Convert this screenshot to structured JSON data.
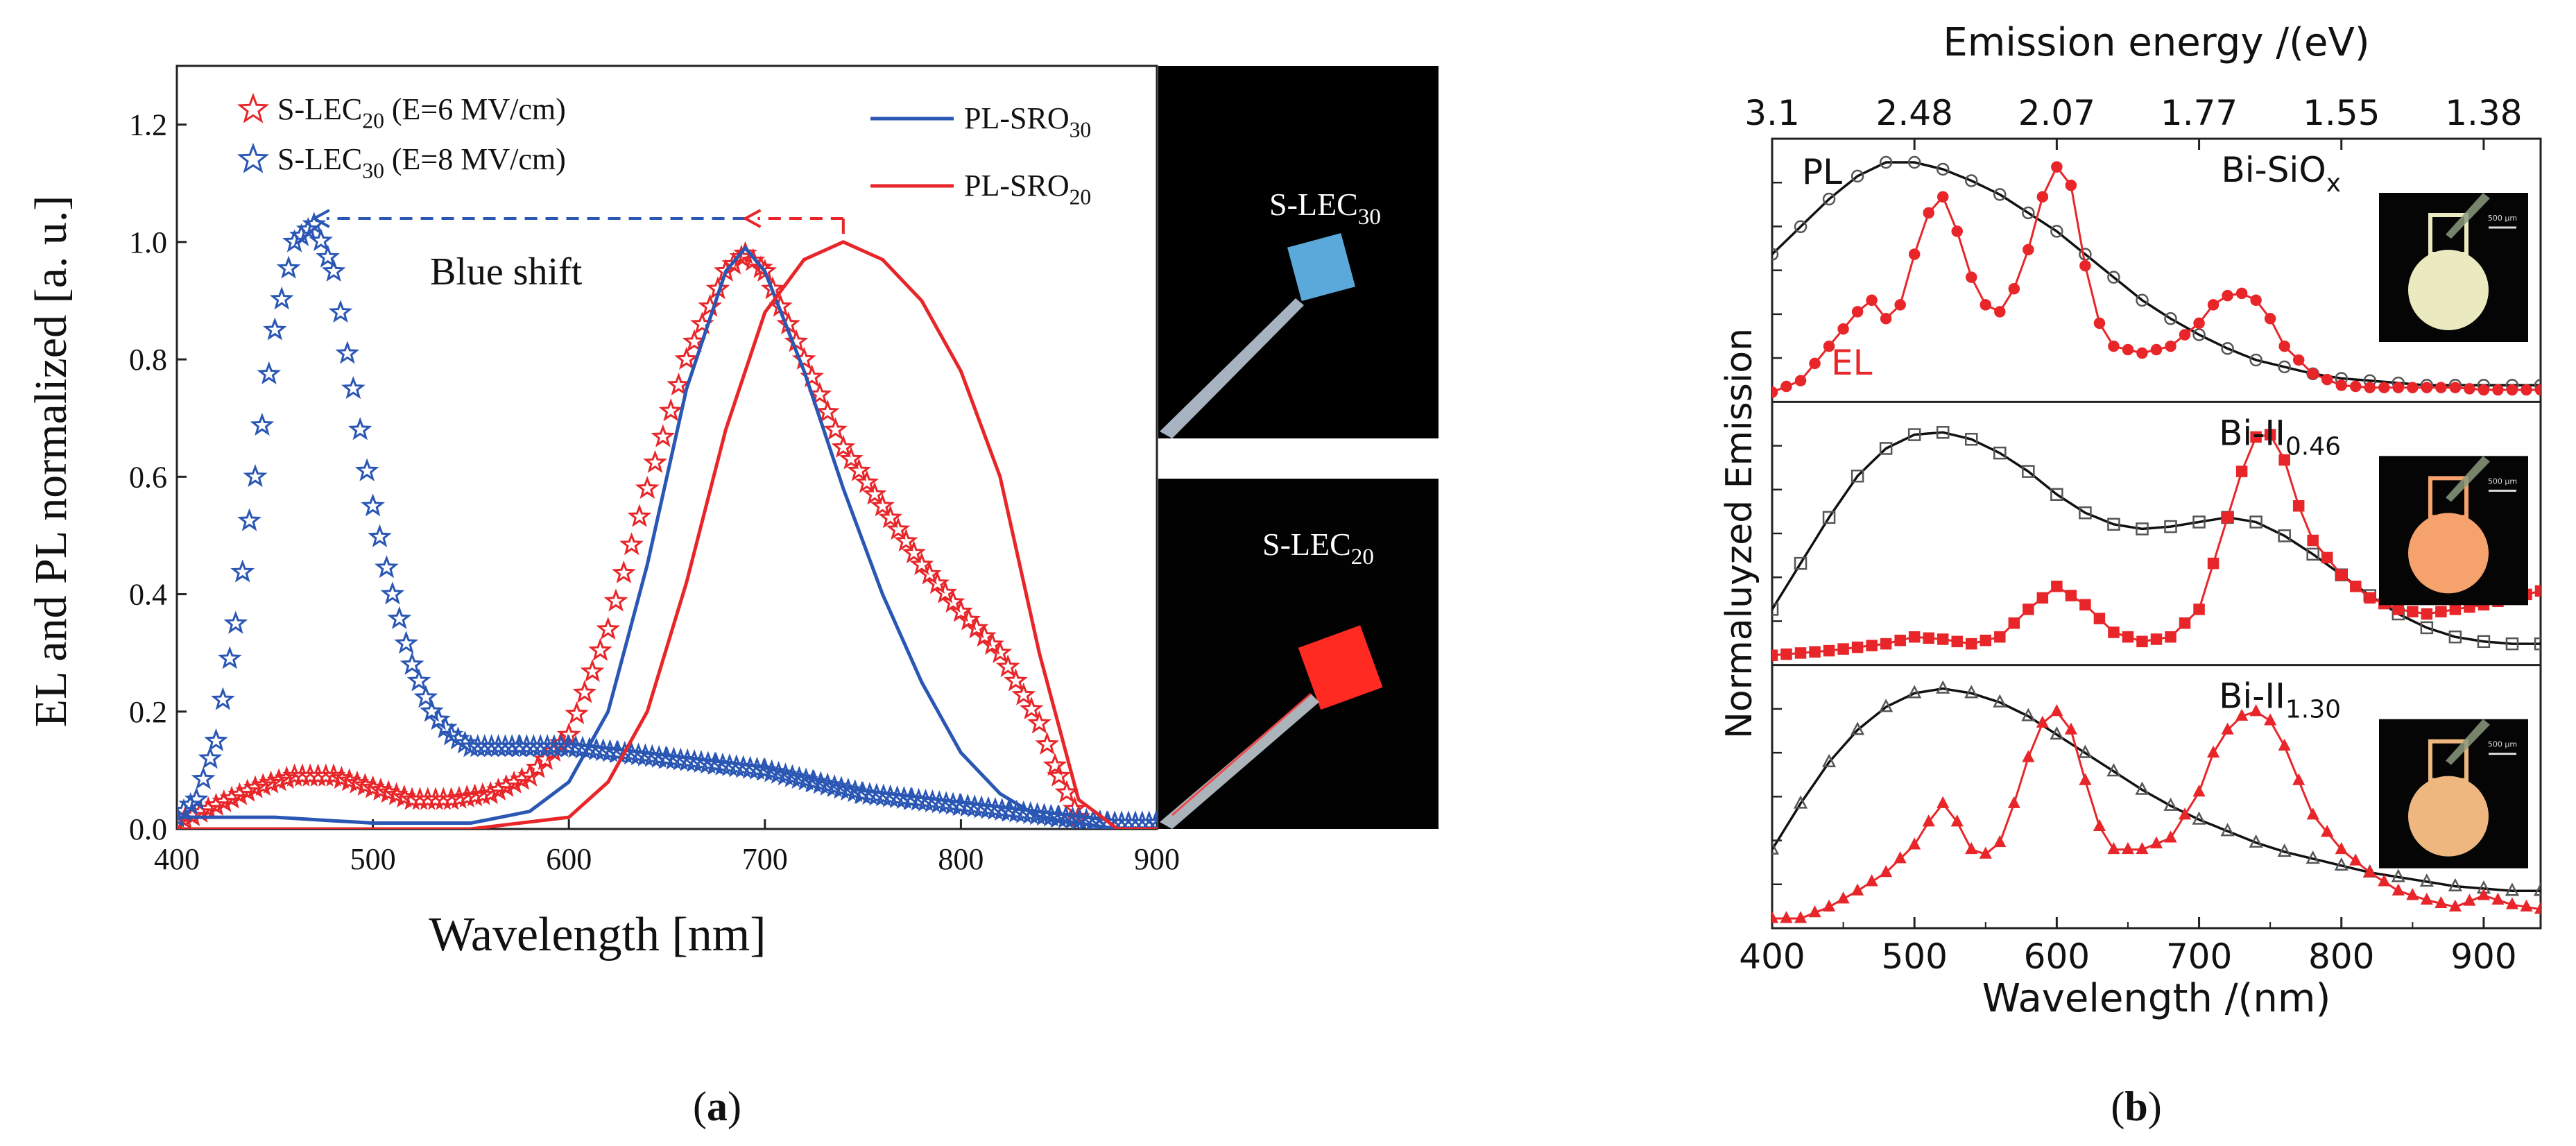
{
  "panel_a": {
    "label": "(a)",
    "label_letter": "a",
    "blue_shift_label": "Blue shift",
    "photo_top_label": {
      "base": "S-LEC",
      "sub": "30"
    },
    "photo_bottom_label": {
      "base": "S-LEC",
      "sub": "20"
    },
    "legend_left": [
      {
        "base": "S-LEC",
        "sub": "20",
        "rest": " (E=6 MV/cm)",
        "color": "#e8262a",
        "marker": "star"
      },
      {
        "base": "S-LEC",
        "sub": "30",
        "rest": " (E=8 MV/cm)",
        "color": "#2a56b4",
        "marker": "star"
      }
    ],
    "legend_right": [
      {
        "base": "PL-SRO",
        "sub": "30",
        "color": "#2a56b4"
      },
      {
        "base": "PL-SRO",
        "sub": "20",
        "color": "#e8262a"
      }
    ]
  },
  "panel_b": {
    "label": "(b)",
    "label_letter": "b",
    "text_pl": "PL",
    "text_el": "EL",
    "sub_labels": [
      {
        "base": "Bi-SiO",
        "sub": "x"
      },
      {
        "base": "Bi-II",
        "sub": "0.46"
      },
      {
        "base": "Bi-II",
        "sub": "1.30"
      }
    ],
    "scale_text": "500 μm",
    "inset_colors": [
      "#ebe9bf",
      "#f5a26c",
      "#eeb77f"
    ]
  },
  "chart_data": [
    {
      "type": "line",
      "xlabel": "Wavelength [nm]",
      "ylabel": "EL and PL normalized [a. u.]",
      "xlim": [
        400,
        900
      ],
      "ylim": [
        0,
        1.3
      ],
      "x_ticks": [
        "400",
        "500",
        "600",
        "700",
        "800",
        "900"
      ],
      "y_ticks": [
        "0.0",
        "0.2",
        "0.4",
        "0.6",
        "0.8",
        "1.0",
        "1.2"
      ],
      "legend_placement": "top",
      "grid": false,
      "series": [
        {
          "name": "S-LEC20 (E=6 MV/cm)",
          "color": "#e8262a",
          "marker": "star",
          "x": [
            400,
            420,
            440,
            460,
            480,
            500,
            520,
            540,
            560,
            580,
            600,
            620,
            640,
            660,
            680,
            690,
            700,
            720,
            740,
            760,
            780,
            800,
            820,
            840,
            850,
            860
          ],
          "y": [
            0.01,
            0.04,
            0.07,
            0.09,
            0.09,
            0.07,
            0.05,
            0.05,
            0.06,
            0.09,
            0.16,
            0.34,
            0.58,
            0.8,
            0.95,
            0.98,
            0.95,
            0.8,
            0.65,
            0.55,
            0.45,
            0.37,
            0.3,
            0.18,
            0.09,
            0.02
          ]
        },
        {
          "name": "S-LEC30 (E=8 MV/cm)",
          "color": "#2a56b4",
          "marker": "star",
          "x": [
            400,
            410,
            420,
            430,
            440,
            450,
            460,
            470,
            480,
            490,
            500,
            510,
            520,
            530,
            540,
            550,
            575,
            600,
            625,
            650,
            675,
            700,
            725,
            750,
            775,
            800,
            825,
            850,
            875,
            900
          ],
          "y": [
            0.02,
            0.05,
            0.15,
            0.35,
            0.6,
            0.85,
            1.0,
            1.03,
            0.95,
            0.75,
            0.55,
            0.4,
            0.28,
            0.2,
            0.16,
            0.14,
            0.14,
            0.14,
            0.13,
            0.12,
            0.11,
            0.1,
            0.08,
            0.06,
            0.05,
            0.04,
            0.03,
            0.02,
            0.01,
            0.01
          ]
        },
        {
          "name": "PL-SRO30",
          "color": "#2a56b4",
          "marker": "none",
          "x": [
            400,
            450,
            500,
            550,
            580,
            600,
            620,
            640,
            660,
            680,
            690,
            700,
            720,
            740,
            760,
            780,
            800,
            820,
            840,
            860,
            880,
            900
          ],
          "y": [
            0.02,
            0.02,
            0.01,
            0.01,
            0.03,
            0.08,
            0.2,
            0.45,
            0.75,
            0.95,
            0.99,
            0.95,
            0.78,
            0.58,
            0.4,
            0.25,
            0.13,
            0.06,
            0.02,
            0.01,
            0.0,
            0.0
          ]
        },
        {
          "name": "PL-SRO20",
          "color": "#e8262a",
          "marker": "none",
          "x": [
            400,
            500,
            550,
            600,
            620,
            640,
            660,
            680,
            700,
            720,
            740,
            760,
            780,
            800,
            820,
            840,
            860,
            880,
            900
          ],
          "y": [
            0.0,
            0.0,
            0.0,
            0.02,
            0.08,
            0.2,
            0.42,
            0.68,
            0.88,
            0.97,
            1.0,
            0.97,
            0.9,
            0.78,
            0.6,
            0.3,
            0.05,
            0.0,
            0.0
          ]
        }
      ],
      "annotations": [
        {
          "text": "Blue shift",
          "from_x": 690,
          "to_x": 470,
          "y": 1.04,
          "color": "#2a56b4"
        },
        {
          "text": "",
          "from_x": 740,
          "to_x": 690,
          "y": 1.04,
          "color": "#e8262a"
        }
      ]
    },
    {
      "type": "line",
      "xlabel": "Wavelength /(nm)",
      "ylabel": "Normaluyzed Emission",
      "x2label": "Emission energy /(eV)",
      "xlim": [
        400,
        940
      ],
      "x_ticks": [
        "400",
        "500",
        "600",
        "700",
        "800",
        "900"
      ],
      "x2_ticks": [
        "3.1",
        "2.48",
        "2.07",
        "1.77",
        "1.55",
        "1.38"
      ],
      "x2_tick_positions_nm": [
        400,
        500,
        600,
        700,
        800,
        900
      ],
      "panels": [
        {
          "label": "Bi-SiOx",
          "series": [
            {
              "name": "PL",
              "color": "#333333",
              "marker": "circle",
              "x": [
                400,
                420,
                440,
                460,
                480,
                500,
                520,
                540,
                560,
                580,
                600,
                620,
                640,
                660,
                680,
                700,
                720,
                740,
                760,
                780,
                800,
                820,
                840,
                860,
                880,
                900,
                920,
                940
              ],
              "y": [
                0.6,
                0.72,
                0.84,
                0.94,
                1.0,
                1.0,
                0.97,
                0.92,
                0.86,
                0.78,
                0.7,
                0.6,
                0.5,
                0.4,
                0.32,
                0.25,
                0.19,
                0.14,
                0.11,
                0.08,
                0.06,
                0.05,
                0.04,
                0.03,
                0.03,
                0.03,
                0.03,
                0.03
              ]
            },
            {
              "name": "EL",
              "color": "#e8262a",
              "marker": "circle",
              "x": [
                400,
                420,
                440,
                460,
                470,
                480,
                490,
                500,
                510,
                520,
                530,
                540,
                550,
                560,
                570,
                580,
                590,
                600,
                610,
                620,
                630,
                640,
                660,
                680,
                700,
                710,
                720,
                730,
                740,
                750,
                760,
                780,
                800,
                820,
                840,
                860,
                880,
                900,
                940
              ],
              "y": [
                0.0,
                0.05,
                0.2,
                0.35,
                0.4,
                0.32,
                0.38,
                0.6,
                0.78,
                0.85,
                0.7,
                0.5,
                0.38,
                0.35,
                0.45,
                0.62,
                0.85,
                0.98,
                0.9,
                0.55,
                0.3,
                0.2,
                0.17,
                0.2,
                0.3,
                0.38,
                0.42,
                0.43,
                0.4,
                0.32,
                0.2,
                0.08,
                0.03,
                0.02,
                0.02,
                0.02,
                0.02,
                0.01,
                0.01
              ]
            }
          ]
        },
        {
          "label": "Bi-II 0.46",
          "series": [
            {
              "name": "PL",
              "color": "#333333",
              "marker": "square",
              "x": [
                400,
                420,
                440,
                460,
                480,
                500,
                520,
                540,
                560,
                580,
                600,
                620,
                640,
                660,
                680,
                700,
                720,
                740,
                760,
                780,
                800,
                820,
                840,
                860,
                880,
                900,
                920,
                940
              ],
              "y": [
                0.2,
                0.4,
                0.6,
                0.78,
                0.9,
                0.96,
                0.97,
                0.94,
                0.88,
                0.8,
                0.7,
                0.62,
                0.57,
                0.55,
                0.56,
                0.58,
                0.6,
                0.58,
                0.52,
                0.44,
                0.35,
                0.26,
                0.18,
                0.12,
                0.08,
                0.06,
                0.05,
                0.05
              ]
            },
            {
              "name": "EL",
              "color": "#e8262a",
              "marker": "square",
              "x": [
                400,
                440,
                480,
                500,
                520,
                540,
                560,
                580,
                600,
                620,
                640,
                660,
                680,
                700,
                710,
                720,
                730,
                740,
                750,
                760,
                770,
                780,
                800,
                820,
                840,
                860,
                880,
                900,
                920,
                940
              ],
              "y": [
                0.0,
                0.02,
                0.05,
                0.08,
                0.07,
                0.05,
                0.08,
                0.2,
                0.3,
                0.22,
                0.1,
                0.06,
                0.08,
                0.2,
                0.4,
                0.6,
                0.8,
                0.95,
                0.96,
                0.85,
                0.65,
                0.5,
                0.35,
                0.25,
                0.2,
                0.18,
                0.2,
                0.22,
                0.25,
                0.28
              ]
            }
          ]
        },
        {
          "label": "Bi-II 1.30",
          "series": [
            {
              "name": "PL",
              "color": "#333333",
              "marker": "triangle",
              "x": [
                400,
                420,
                440,
                460,
                480,
                500,
                520,
                540,
                560,
                580,
                600,
                620,
                640,
                660,
                680,
                700,
                720,
                740,
                760,
                780,
                800,
                820,
                840,
                860,
                880,
                900,
                920,
                940
              ],
              "y": [
                0.3,
                0.5,
                0.68,
                0.82,
                0.92,
                0.98,
                1.0,
                0.98,
                0.94,
                0.88,
                0.8,
                0.72,
                0.64,
                0.56,
                0.49,
                0.43,
                0.38,
                0.33,
                0.29,
                0.26,
                0.23,
                0.2,
                0.18,
                0.16,
                0.14,
                0.13,
                0.12,
                0.12
              ]
            },
            {
              "name": "EL",
              "color": "#e8262a",
              "marker": "triangle",
              "x": [
                400,
                420,
                440,
                460,
                480,
                500,
                510,
                520,
                530,
                540,
                550,
                560,
                570,
                580,
                590,
                600,
                610,
                620,
                630,
                640,
                660,
                680,
                700,
                710,
                720,
                730,
                740,
                750,
                760,
                770,
                780,
                800,
                820,
                840,
                860,
                880,
                900,
                920,
                940
              ],
              "y": [
                0.0,
                0.0,
                0.05,
                0.12,
                0.2,
                0.32,
                0.42,
                0.5,
                0.42,
                0.3,
                0.28,
                0.33,
                0.5,
                0.7,
                0.85,
                0.9,
                0.82,
                0.6,
                0.4,
                0.3,
                0.3,
                0.35,
                0.55,
                0.72,
                0.82,
                0.88,
                0.9,
                0.86,
                0.75,
                0.6,
                0.45,
                0.3,
                0.2,
                0.12,
                0.08,
                0.05,
                0.1,
                0.06,
                0.04
              ]
            }
          ]
        }
      ]
    }
  ]
}
